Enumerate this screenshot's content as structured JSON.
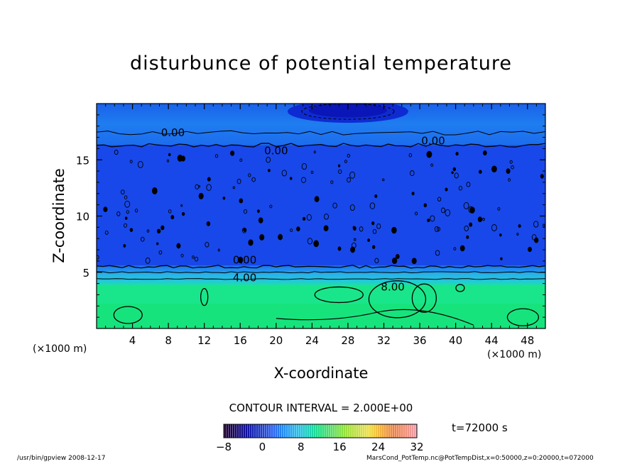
{
  "chart_data": {
    "type": "heatmap",
    "title": "disturbunce of potential temperature",
    "xlabel": "X-coordinate",
    "ylabel": "Z-coordinate",
    "x_unit_left": "(×1000 m)",
    "x_unit_right": "(×1000 m)",
    "xlim": [
      0,
      50
    ],
    "ylim": [
      0,
      20
    ],
    "x_ticks": [
      4,
      8,
      12,
      16,
      20,
      24,
      28,
      32,
      36,
      40,
      44,
      48
    ],
    "y_ticks": [
      5,
      10,
      15
    ],
    "contour_interval": "CONTOUR INTERVAL = 2.000E+00",
    "contour_labels": [
      {
        "text": "0.00",
        "x": 8.5,
        "y": 17.4
      },
      {
        "text": "0.00",
        "x": 20.0,
        "y": 15.8
      },
      {
        "text": "0.00",
        "x": 37.5,
        "y": 16.7
      },
      {
        "text": "0.00",
        "x": 16.5,
        "y": 6.1
      },
      {
        "text": "4.00",
        "x": 16.5,
        "y": 4.5
      },
      {
        "text": "8.00",
        "x": 33.0,
        "y": 3.7
      }
    ],
    "colorbar": {
      "min": -8,
      "max": 32,
      "tick_labels": [
        -8,
        0,
        8,
        16,
        24,
        32
      ]
    },
    "field_regions": [
      {
        "z_range": [
          0,
          4.2
        ],
        "value": 8,
        "color": "#19e68a"
      },
      {
        "z_range": [
          4.2,
          5.0
        ],
        "value": 4,
        "color": "#2ab8e6"
      },
      {
        "z_range": [
          5.0,
          16.5
        ],
        "value": -2,
        "color": "#1848ea"
      },
      {
        "z_range": [
          16.5,
          20
        ],
        "value": 0,
        "color": "#1a6fee"
      }
    ],
    "time_label": "t=72000 s",
    "grid": false,
    "legend": "bottom"
  },
  "footer": {
    "left": "/usr/bin/gpview   2008-12-17",
    "right": "MarsCond_PotTemp.nc@PotTempDist,x=0:50000,z=0:20000,t=072000"
  }
}
